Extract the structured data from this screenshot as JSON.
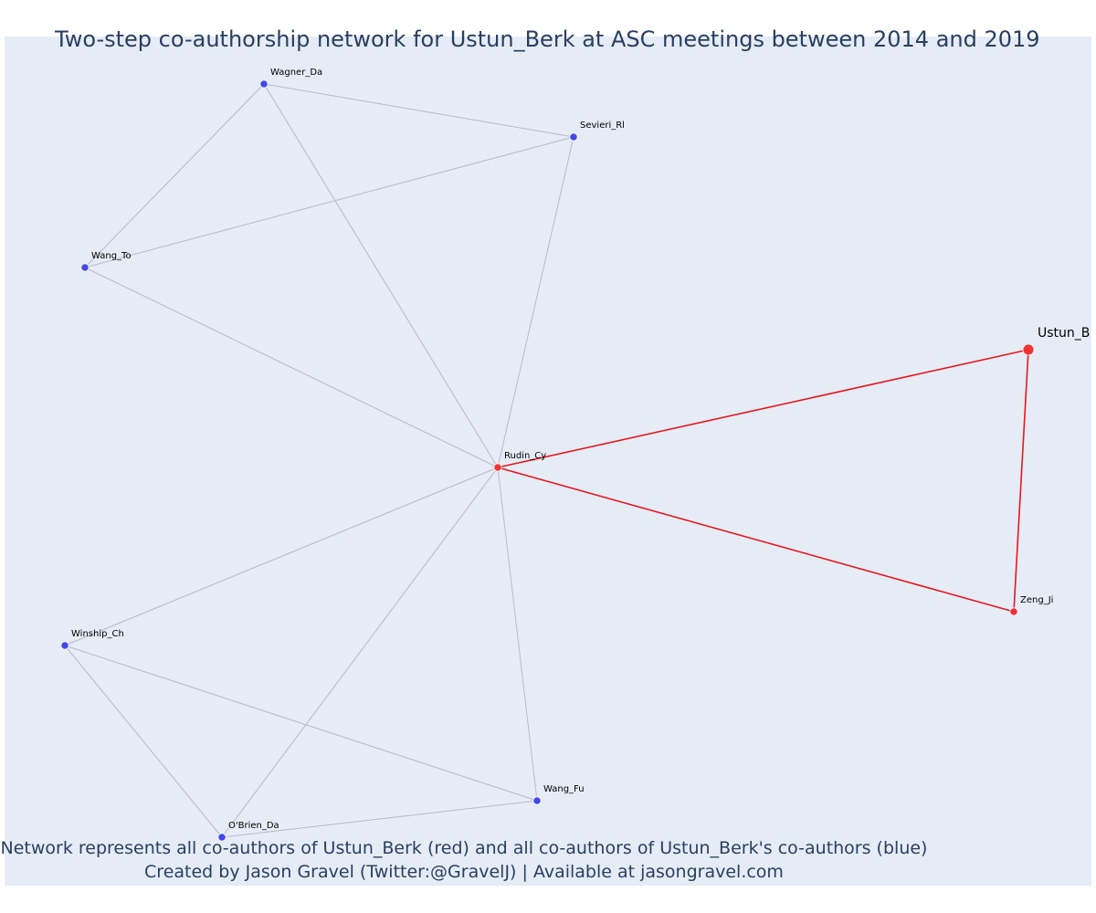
{
  "title": "Two-step co-authorship network for Ustun_Berk at ASC meetings between 2014 and 2019",
  "captions": [
    "Network represents all co-authors of Ustun_Berk (red) and all co-authors of Ustun_Berk's co-authors (blue)",
    "Created by Jason Gravel (Twitter:@GravelJ) | Available at jasongravel.com"
  ],
  "colors": {
    "background": "#e5ecf6",
    "text": "#2a3f5f",
    "first_step": "#ef2b2b",
    "second_step": "#3b3fe8",
    "first_step_edge": "#e8161b",
    "second_step_edge": "#b9b9c6"
  },
  "nodes": [
    {
      "id": "Ustun_B",
      "label": "Ustun_B",
      "group": "ego"
    },
    {
      "id": "Rudin_Cy",
      "label": "Rudin_Cy",
      "group": "first"
    },
    {
      "id": "Zeng_Ji",
      "label": "Zeng_Ji",
      "group": "first"
    },
    {
      "id": "Wagner_Da",
      "label": "Wagner_Da",
      "group": "second"
    },
    {
      "id": "Sevieri_Rl",
      "label": "Sevieri_Rl",
      "group": "second"
    },
    {
      "id": "Wang_To",
      "label": "Wang_To",
      "group": "second"
    },
    {
      "id": "Winship_Ch",
      "label": "Winship_Ch",
      "group": "second"
    },
    {
      "id": "OBrien_Da",
      "label": "O'Brien_Da",
      "group": "second"
    },
    {
      "id": "Wang_Fu",
      "label": "Wang_Fu",
      "group": "second"
    }
  ],
  "edges": [
    {
      "source": "Ustun_B",
      "target": "Rudin_Cy",
      "group": "first"
    },
    {
      "source": "Ustun_B",
      "target": "Zeng_Ji",
      "group": "first"
    },
    {
      "source": "Rudin_Cy",
      "target": "Zeng_Ji",
      "group": "first"
    },
    {
      "source": "Wagner_Da",
      "target": "Sevieri_Rl",
      "group": "second"
    },
    {
      "source": "Wagner_Da",
      "target": "Wang_To",
      "group": "second"
    },
    {
      "source": "Wagner_Da",
      "target": "Rudin_Cy",
      "group": "second"
    },
    {
      "source": "Sevieri_Rl",
      "target": "Wang_To",
      "group": "second"
    },
    {
      "source": "Sevieri_Rl",
      "target": "Rudin_Cy",
      "group": "second"
    },
    {
      "source": "Wang_To",
      "target": "Rudin_Cy",
      "group": "second"
    },
    {
      "source": "Rudin_Cy",
      "target": "Winship_Ch",
      "group": "second"
    },
    {
      "source": "Rudin_Cy",
      "target": "OBrien_Da",
      "group": "second"
    },
    {
      "source": "Rudin_Cy",
      "target": "Wang_Fu",
      "group": "second"
    },
    {
      "source": "Winship_Ch",
      "target": "OBrien_Da",
      "group": "second"
    },
    {
      "source": "Winship_Ch",
      "target": "Wang_Fu",
      "group": "second"
    },
    {
      "source": "OBrien_Da",
      "target": "Wang_Fu",
      "group": "second"
    }
  ]
}
